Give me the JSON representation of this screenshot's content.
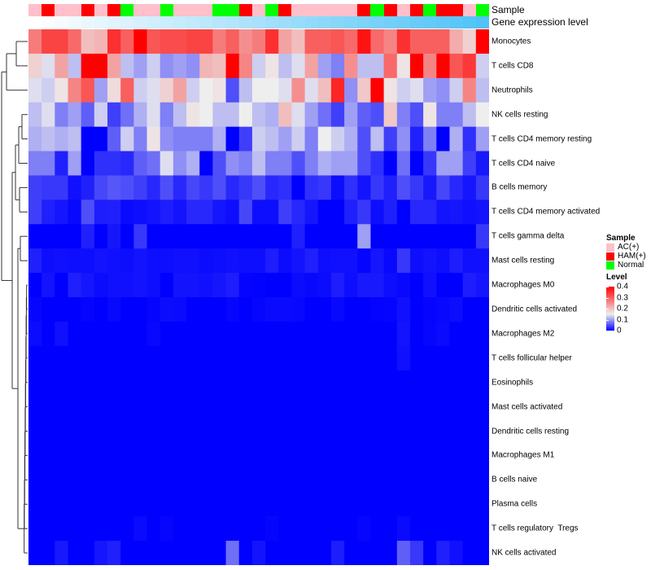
{
  "annotations": {
    "sample_label": "Sample",
    "gene_label": "Gene expression level",
    "samples": [
      "AC(+)",
      "HAM(+)",
      "AC(+)",
      "AC(+)",
      "HAM(+)",
      "AC(+)",
      "HAM(+)",
      "Normal",
      "AC(+)",
      "AC(+)",
      "Normal",
      "AC(+)",
      "AC(+)",
      "AC(+)",
      "Normal",
      "Normal",
      "HAM(+)",
      "AC(+)",
      "Normal",
      "HAM(+)",
      "AC(+)",
      "AC(+)",
      "AC(+)",
      "AC(+)",
      "AC(+)",
      "HAM(+)",
      "Normal",
      "HAM(+)",
      "AC(+)",
      "HAM(+)",
      "Normal",
      "HAM(+)",
      "HAM(+)",
      "AC(+)",
      "Normal"
    ],
    "sample_colors": {
      "AC(+)": "#ffc0cb",
      "HAM(+)": "#ff0000",
      "Normal": "#00ff00"
    },
    "gene_colors": [
      "#ffffff",
      "#4fc3f7"
    ]
  },
  "legend": {
    "sample_title": "Sample",
    "sample_items": [
      "AC(+)",
      "HAM(+)",
      "Normal"
    ],
    "level_title": "Level",
    "level_ticks": [
      "0.4",
      "0.3",
      "0.2",
      "0.1",
      "0"
    ],
    "level_values": [
      0.4,
      0.3,
      0.2,
      0.1,
      0
    ]
  },
  "chart_data": {
    "type": "heatmap",
    "title": "",
    "color_scale": {
      "low": "#0000ff",
      "mid": "#eeeeee",
      "high": "#ff0000",
      "min": 0,
      "mid_value": 0.15,
      "max": 0.4
    },
    "columns": 35,
    "rows": [
      {
        "label": "Monocytes",
        "values": [
          0.27,
          0.33,
          0.33,
          0.29,
          0.2,
          0.21,
          0.35,
          0.3,
          0.4,
          0.31,
          0.32,
          0.32,
          0.33,
          0.33,
          0.27,
          0.3,
          0.25,
          0.27,
          0.35,
          0.23,
          0.2,
          0.3,
          0.3,
          0.31,
          0.29,
          0.38,
          0.29,
          0.26,
          0.35,
          0.3,
          0.3,
          0.3,
          0.22,
          0.18,
          0.4
        ]
      },
      {
        "label": "T cells CD8",
        "values": [
          0.18,
          0.14,
          0.23,
          0.12,
          0.4,
          0.4,
          0.23,
          0.12,
          0.1,
          0.13,
          0.09,
          0.1,
          0.09,
          0.21,
          0.2,
          0.4,
          0.26,
          0.13,
          0.16,
          0.12,
          0.14,
          0.23,
          0.1,
          0.08,
          0.25,
          0.12,
          0.12,
          0.29,
          0.16,
          0.4,
          0.26,
          0.4,
          0.31,
          0.34,
          0.13
        ]
      },
      {
        "label": "Neutrophils",
        "values": [
          0.14,
          0.13,
          0.16,
          0.26,
          0.31,
          0.1,
          0.17,
          0.3,
          0.13,
          0.14,
          0.18,
          0.23,
          0.13,
          0.15,
          0.16,
          0.05,
          0.12,
          0.15,
          0.15,
          0.14,
          0.25,
          0.14,
          0.2,
          0.36,
          0.09,
          0.19,
          0.4,
          0.16,
          0.13,
          0.14,
          0.1,
          0.09,
          0.13,
          0.26,
          0.12
        ]
      },
      {
        "label": "NK cells resting",
        "values": [
          0.12,
          0.14,
          0.08,
          0.1,
          0.06,
          0.13,
          0.04,
          0.07,
          0.11,
          0.14,
          0.08,
          0.12,
          0.16,
          0.15,
          0.12,
          0.12,
          0.15,
          0.12,
          0.11,
          0.2,
          0.14,
          0.1,
          0.07,
          0.04,
          0.1,
          0.06,
          0.05,
          0.19,
          0.08,
          0.05,
          0.16,
          0.08,
          0.08,
          0.12,
          0.15
        ]
      },
      {
        "label": "T cells CD4 memory resting",
        "values": [
          0.11,
          0.12,
          0.11,
          0.12,
          0,
          0,
          0.06,
          0.13,
          0.08,
          0.16,
          0.09,
          0.08,
          0.08,
          0.08,
          0.11,
          0,
          0.04,
          0.13,
          0.12,
          0.1,
          0.13,
          0.08,
          0.15,
          0.13,
          0.11,
          0.05,
          0.12,
          0.04,
          0.09,
          0.02,
          0.08,
          0,
          0.11,
          0.03,
          0.1
        ]
      },
      {
        "label": "T cells CD4 naive",
        "values": [
          0.08,
          0.08,
          0.02,
          0.1,
          0,
          0.03,
          0.03,
          0.025,
          0.06,
          0.07,
          0.14,
          0.09,
          0.11,
          0,
          0.05,
          0.09,
          0.08,
          0.12,
          0.08,
          0.08,
          0.05,
          0.08,
          0.11,
          0.1,
          0.1,
          0.05,
          0.03,
          0,
          0.07,
          0,
          0.035,
          0.1,
          0.1,
          0.04,
          0.015
        ]
      },
      {
        "label": "B cells memory",
        "values": [
          0.04,
          0.035,
          0.035,
          0.01,
          0.02,
          0.045,
          0.055,
          0.05,
          0.04,
          0.025,
          0.05,
          0.025,
          0.045,
          0.035,
          0.05,
          0.025,
          0.035,
          0.05,
          0.025,
          0.03,
          0,
          0.03,
          0.035,
          0.008,
          0.03,
          0.012,
          0.035,
          0.02,
          0.05,
          0.035,
          0.015,
          0.045,
          0.025,
          0.013,
          0.035
        ]
      },
      {
        "label": "T cells CD4 memory activated",
        "values": [
          0.04,
          0.02,
          0.013,
          0.005,
          0.05,
          0.018,
          0.02,
          0.006,
          0.009,
          0.012,
          0.018,
          0.012,
          0.025,
          0.025,
          0.013,
          0.009,
          0.045,
          0.009,
          0.009,
          0.04,
          0.025,
          0.014,
          0,
          0,
          0.02,
          0.035,
          0.009,
          0.02,
          0,
          0.025,
          0.025,
          0.012,
          0.014,
          0.01,
          0.012
        ]
      },
      {
        "label": "T cells gamma delta",
        "values": [
          0,
          0,
          0,
          0,
          0.02,
          0,
          0.014,
          0,
          0.035,
          0,
          0,
          0,
          0,
          0,
          0,
          0,
          0,
          0,
          0,
          0,
          0.02,
          0,
          0,
          0,
          0,
          0.1,
          0,
          0,
          0,
          0,
          0,
          0,
          0,
          0,
          0.035
        ]
      },
      {
        "label": "Mast cells resting",
        "values": [
          0.02,
          0.009,
          0.01,
          0.009,
          0.009,
          0.012,
          0.01,
          0.009,
          0.012,
          0.009,
          0.009,
          0.01,
          0.01,
          0.007,
          0.009,
          0.01,
          0.009,
          0.009,
          0.018,
          0.007,
          0.012,
          0.02,
          0.009,
          0.01,
          0.01,
          0.003,
          0.014,
          0.005,
          0.035,
          0.009,
          0.012,
          0.009,
          0.018,
          0.01,
          0.01
        ]
      },
      {
        "label": "Macrophages M0",
        "values": [
          0,
          0.012,
          0,
          0.02,
          0.014,
          0.007,
          0.01,
          0.01,
          0.012,
          0.009,
          0,
          0.012,
          0.012,
          0.01,
          0.014,
          0.018,
          0.003,
          0.001,
          0,
          0,
          0.007,
          0.005,
          0.007,
          0.018,
          0.009,
          0.016,
          0.016,
          0.009,
          0.005,
          0,
          0.01,
          0,
          0,
          0.018,
          0.013
        ]
      },
      {
        "label": "Dendritic cells activated",
        "values": [
          0.004,
          0,
          0,
          0,
          0.003,
          0,
          0.005,
          0,
          0,
          0.003,
          0.007,
          0.006,
          0,
          0,
          0,
          0.004,
          0,
          0.004,
          0.006,
          0.006,
          0.005,
          0,
          0,
          0.005,
          0,
          0,
          0.002,
          0.003,
          0.01,
          0,
          0.003,
          0.005,
          0.008,
          0,
          0
        ]
      },
      {
        "label": "Macrophages M2",
        "values": [
          0.007,
          0,
          0.01,
          0,
          0,
          0,
          0,
          0,
          0,
          0.005,
          0,
          0,
          0,
          0,
          0,
          0,
          0,
          0,
          0,
          0,
          0,
          0,
          0,
          0,
          0,
          0,
          0,
          0,
          0.012,
          0,
          0.004,
          0.006,
          0,
          0,
          0
        ]
      },
      {
        "label": "T cells follicular helper",
        "values": [
          0,
          0,
          0,
          0,
          0,
          0,
          0,
          0,
          0,
          0,
          0,
          0,
          0,
          0,
          0,
          0,
          0,
          0,
          0,
          0,
          0,
          0,
          0,
          0,
          0,
          0,
          0,
          0,
          0.01,
          0,
          0,
          0,
          0,
          0,
          0
        ]
      },
      {
        "label": "Eosinophils",
        "values": [
          0,
          0,
          0,
          0,
          0,
          0,
          0,
          0,
          0,
          0,
          0,
          0,
          0,
          0,
          0,
          0,
          0,
          0,
          0,
          0,
          0,
          0,
          0,
          0,
          0,
          0,
          0,
          0,
          0,
          0,
          0,
          0,
          0,
          0,
          0
        ]
      },
      {
        "label": "Mast cells activated",
        "values": [
          0,
          0,
          0,
          0,
          0,
          0,
          0,
          0,
          0,
          0,
          0,
          0,
          0,
          0,
          0,
          0,
          0,
          0,
          0,
          0,
          0,
          0,
          0,
          0,
          0,
          0,
          0,
          0,
          0,
          0,
          0,
          0,
          0,
          0,
          0
        ]
      },
      {
        "label": "Dendritic cells resting",
        "values": [
          0,
          0,
          0,
          0,
          0,
          0,
          0,
          0,
          0,
          0,
          0,
          0,
          0,
          0,
          0,
          0,
          0,
          0,
          0,
          0,
          0,
          0,
          0,
          0,
          0,
          0,
          0,
          0,
          0,
          0,
          0,
          0,
          0,
          0,
          0
        ]
      },
      {
        "label": "Macrophages M1",
        "values": [
          0,
          0,
          0,
          0,
          0,
          0,
          0,
          0,
          0,
          0,
          0,
          0,
          0,
          0,
          0,
          0,
          0,
          0,
          0,
          0,
          0,
          0,
          0,
          0,
          0,
          0,
          0,
          0,
          0,
          0,
          0,
          0,
          0,
          0,
          0
        ]
      },
      {
        "label": "B cells naive",
        "values": [
          0,
          0,
          0,
          0,
          0,
          0,
          0,
          0,
          0,
          0,
          0,
          0,
          0,
          0,
          0,
          0,
          0,
          0,
          0,
          0,
          0,
          0,
          0,
          0,
          0,
          0,
          0,
          0,
          0,
          0,
          0,
          0,
          0,
          0,
          0
        ]
      },
      {
        "label": "Plasma cells",
        "values": [
          0,
          0,
          0,
          0,
          0,
          0,
          0,
          0,
          0,
          0,
          0,
          0,
          0,
          0,
          0,
          0,
          0,
          0,
          0,
          0,
          0,
          0,
          0,
          0,
          0,
          0,
          0,
          0,
          0,
          0,
          0,
          0,
          0,
          0,
          0
        ]
      },
      {
        "label": "T cells regulatory  Tregs",
        "values": [
          0,
          0,
          0,
          0,
          0,
          0,
          0,
          0,
          0.006,
          0,
          0.004,
          0,
          0,
          0,
          0,
          0,
          0,
          0,
          0.003,
          0,
          0,
          0,
          0,
          0,
          0,
          0.004,
          0,
          0,
          0.006,
          0,
          0,
          0,
          0,
          0,
          0
        ]
      },
      {
        "label": "NK cells activated",
        "values": [
          0,
          0,
          0.015,
          0,
          0,
          0.013,
          0.02,
          0,
          0,
          0,
          0,
          0,
          0,
          0,
          0,
          0.07,
          0,
          0.012,
          0,
          0,
          0,
          0,
          0,
          0.018,
          0,
          0,
          0,
          0,
          0.06,
          0.035,
          0,
          0.02,
          0.01,
          0,
          0
        ]
      }
    ]
  }
}
